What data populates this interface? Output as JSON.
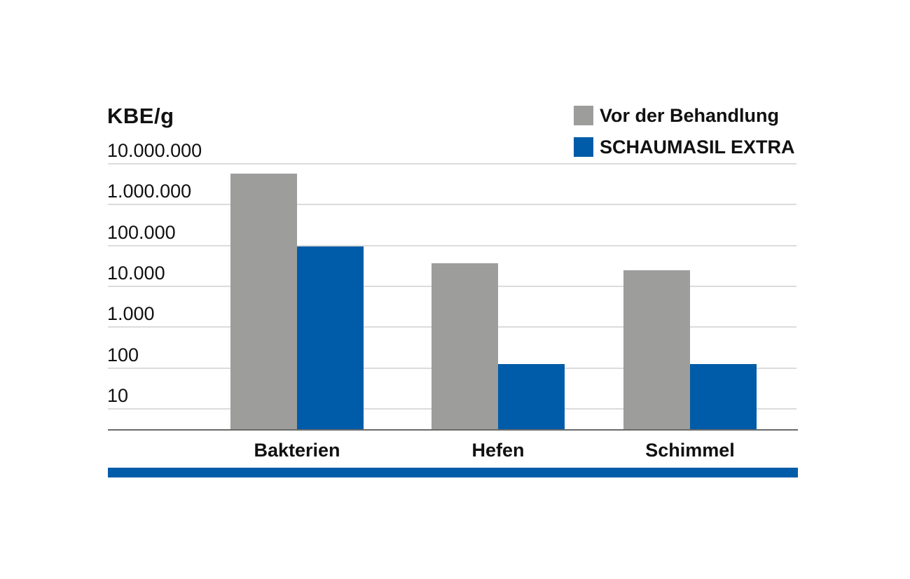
{
  "chart": {
    "title": "KBE/g",
    "legend": [
      {
        "label": "Vor der Behandlung",
        "color": "#9d9d9c"
      },
      {
        "label": "SCHAUMASIL EXTRA",
        "color": "#005ca8"
      }
    ]
  },
  "chart_data": {
    "type": "bar",
    "scale": "log",
    "title": "KBE/g",
    "ylabel": "KBE/g",
    "categories": [
      "Bakterien",
      "Hefen",
      "Schimmel"
    ],
    "series": [
      {
        "name": "Vor der Behandlung",
        "color": "#9d9d9c",
        "values": [
          5500000,
          35000,
          24000
        ]
      },
      {
        "name": "SCHAUMASIL EXTRA",
        "color": "#005ca8",
        "values": [
          90000,
          120,
          120
        ]
      }
    ],
    "yticks": [
      {
        "label": "10.000.000",
        "value": 10000000
      },
      {
        "label": "1.000.000",
        "value": 1000000
      },
      {
        "label": "100.000",
        "value": 100000
      },
      {
        "label": "10.000",
        "value": 10000
      },
      {
        "label": "1.000",
        "value": 1000
      },
      {
        "label": "100",
        "value": 100
      },
      {
        "label": "10",
        "value": 10
      }
    ],
    "ylim": [
      3,
      10000000
    ],
    "grid": true,
    "legend_position": "top-right"
  },
  "footer": {
    "accent_color": "#005ca8"
  }
}
